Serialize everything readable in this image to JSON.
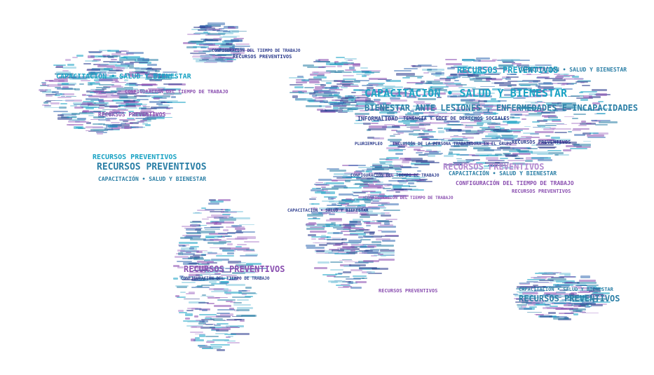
{
  "phrases": {
    "p1": "RECURSOS PREVENTIVOS",
    "p2": "CAPACITACIÓN",
    "p3": "SALUD Y BIENESTAR",
    "p4": "BIENESTAR ANTE LESIONES , ENFERMEDADES E INCAPACIDADES",
    "p5": "CONFIGURACIÓN DEL TIEMPO DE TRABAJO",
    "p6": "INFORMALIDAD",
    "p7": "TENENCIA Y GOCE DE DERECHOS SOCIALES",
    "p8": "PLURIEMPLEO",
    "p9": "INCLUSIÓN DE LA PERSONA TRABAJADORA EN EL GRUPO",
    "p10": "CAPACITACIÓN • SALUD Y BIENESTAR"
  },
  "colors": {
    "cyan": "#1aa3c4",
    "teal": "#2b7fa6",
    "navy": "#2a3a8c",
    "blue": "#3a6fb5",
    "purple": "#8a4fb0",
    "lilac": "#b48ad0",
    "sky": "#7fc6dc"
  }
}
